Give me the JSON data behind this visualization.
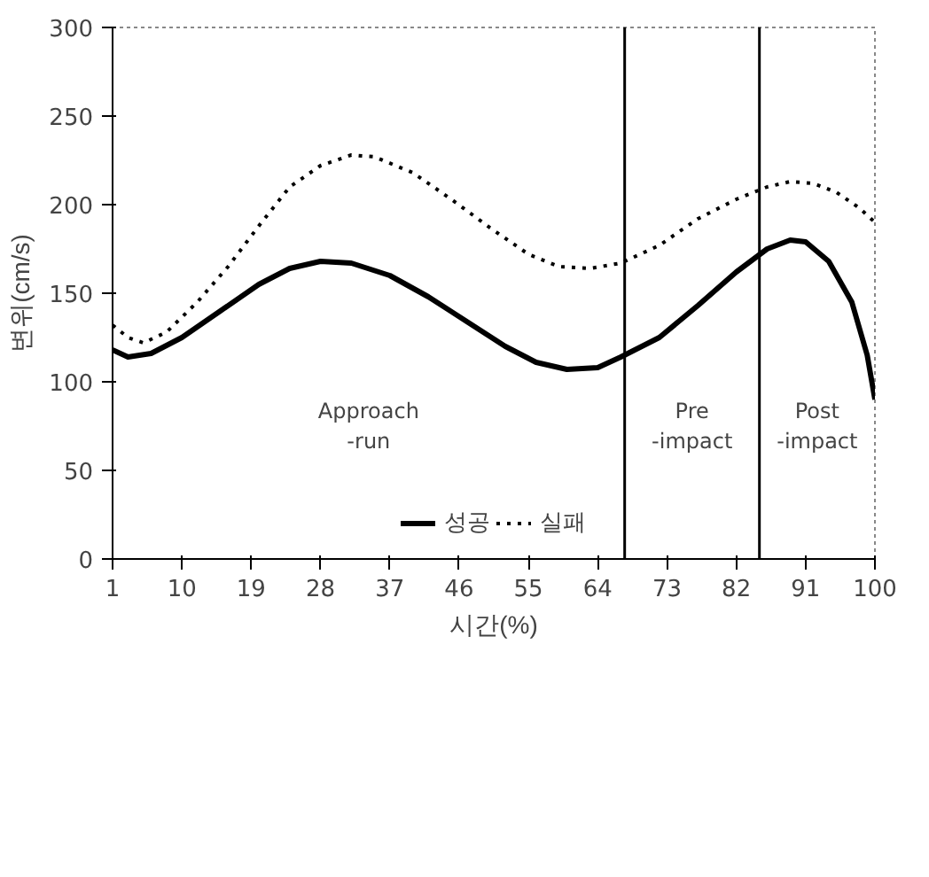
{
  "chart_data": {
    "type": "line",
    "xlabel": "시간(%)",
    "ylabel": "변위(cm/s)",
    "xlim": [
      1,
      100
    ],
    "xticks": [
      1,
      10,
      19,
      28,
      37,
      46,
      55,
      64,
      73,
      82,
      91,
      100
    ],
    "ylim": [
      0,
      300
    ],
    "yticks": [
      0,
      50,
      100,
      150,
      200,
      250,
      300
    ],
    "grid": false,
    "legend": "bottom",
    "series": [
      {
        "name": "성공",
        "color": "#000000",
        "line_style": "solid",
        "x": [
          1,
          3,
          6,
          10,
          15,
          20,
          24,
          28,
          32,
          37,
          42,
          47,
          52,
          56,
          60,
          64,
          67,
          72,
          77,
          82,
          86,
          89,
          91,
          94,
          97,
          99,
          100
        ],
        "values": [
          118,
          114,
          116,
          125,
          140,
          155,
          164,
          168,
          167,
          160,
          148,
          134,
          120,
          111,
          107,
          108,
          114,
          125,
          143,
          162,
          175,
          180,
          179,
          168,
          145,
          115,
          90
        ]
      },
      {
        "name": "실패",
        "color": "#000000",
        "line_style": "dotted",
        "x": [
          1,
          3,
          5,
          8,
          12,
          16,
          20,
          24,
          28,
          32,
          35,
          40,
          45,
          50,
          55,
          59,
          63,
          67,
          72,
          77,
          82,
          86,
          89,
          92,
          95,
          98,
          100
        ],
        "values": [
          132,
          125,
          122,
          128,
          145,
          165,
          188,
          210,
          222,
          228,
          227,
          218,
          203,
          187,
          172,
          165,
          164,
          167,
          177,
          192,
          203,
          210,
          213,
          212,
          207,
          198,
          190
        ]
      }
    ],
    "ref_lines": [
      {
        "axis": "x",
        "value": 67.5,
        "color": "#000000"
      },
      {
        "axis": "x",
        "value": 85,
        "color": "#000000"
      }
    ],
    "annotations": [
      "Approach\n-run",
      "Pre\n-impact",
      "Post\n-impact"
    ]
  }
}
